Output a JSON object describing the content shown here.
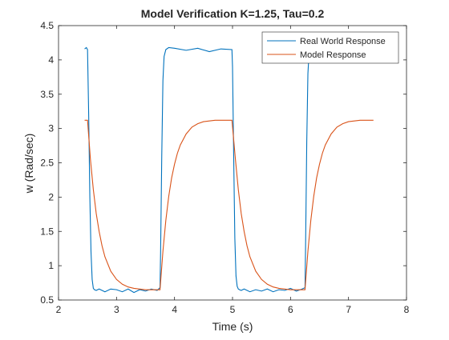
{
  "chart_data": {
    "type": "line",
    "title": "Model Verification K=1.25, Tau=0.2",
    "xlabel": "Time (s)",
    "ylabel": "w (Rad/sec)",
    "xlim": [
      2,
      8
    ],
    "ylim": [
      0.5,
      4.5
    ],
    "xticks": [
      "2",
      "3",
      "4",
      "5",
      "6",
      "7",
      "8"
    ],
    "yticks": [
      "0.5",
      "1",
      "1.5",
      "2",
      "2.5",
      "3",
      "3.5",
      "4",
      "4.5"
    ],
    "grid": false,
    "legend_position": "top-right",
    "series": [
      {
        "name": "Real World Response",
        "color": "#0072BD",
        "x": [
          2.45,
          2.48,
          2.5,
          2.52,
          2.54,
          2.56,
          2.58,
          2.6,
          2.62,
          2.65,
          2.7,
          2.8,
          2.9,
          3.0,
          3.1,
          3.2,
          3.3,
          3.4,
          3.5,
          3.6,
          3.7,
          3.75,
          3.76,
          3.78,
          3.8,
          3.82,
          3.85,
          3.9,
          4.0,
          4.2,
          4.4,
          4.6,
          4.8,
          4.99,
          5.0,
          5.02,
          5.04,
          5.06,
          5.08,
          5.1,
          5.12,
          5.15,
          5.2,
          5.3,
          5.4,
          5.5,
          5.6,
          5.7,
          5.8,
          5.9,
          6.0,
          6.1,
          6.2,
          6.25,
          6.26,
          6.28,
          6.3,
          6.32,
          6.35
        ],
        "y": [
          4.16,
          4.18,
          4.15,
          3.2,
          2.0,
          1.2,
          0.8,
          0.67,
          0.65,
          0.64,
          0.66,
          0.62,
          0.66,
          0.65,
          0.62,
          0.66,
          0.61,
          0.65,
          0.63,
          0.66,
          0.64,
          0.68,
          1.2,
          2.6,
          3.7,
          4.05,
          4.15,
          4.18,
          4.17,
          4.14,
          4.17,
          4.12,
          4.16,
          4.15,
          3.9,
          2.6,
          1.4,
          0.85,
          0.7,
          0.66,
          0.65,
          0.64,
          0.66,
          0.62,
          0.65,
          0.63,
          0.66,
          0.62,
          0.65,
          0.64,
          0.67,
          0.63,
          0.66,
          0.68,
          1.3,
          2.8,
          3.8,
          4.1,
          4.15
        ]
      },
      {
        "name": "Model Response",
        "color": "#D95319",
        "x": [
          2.45,
          2.5,
          2.55,
          2.6,
          2.65,
          2.7,
          2.75,
          2.8,
          2.9,
          3.0,
          3.1,
          3.2,
          3.3,
          3.4,
          3.5,
          3.6,
          3.7,
          3.75,
          3.8,
          3.85,
          3.9,
          3.95,
          4.0,
          4.05,
          4.1,
          4.2,
          4.3,
          4.4,
          4.5,
          4.6,
          4.7,
          4.8,
          4.9,
          4.99,
          5.05,
          5.1,
          5.15,
          5.2,
          5.25,
          5.3,
          5.4,
          5.5,
          5.6,
          5.7,
          5.8,
          5.9,
          6.0,
          6.1,
          6.2,
          6.25,
          6.3,
          6.35,
          6.4,
          6.45,
          6.5,
          6.55,
          6.6,
          6.7,
          6.8,
          6.9,
          7.0,
          7.1,
          7.2,
          7.3,
          7.43
        ],
        "y": [
          3.12,
          3.12,
          2.55,
          2.11,
          1.76,
          1.5,
          1.29,
          1.13,
          0.92,
          0.8,
          0.73,
          0.69,
          0.67,
          0.66,
          0.65,
          0.65,
          0.65,
          0.65,
          1.21,
          1.66,
          2.01,
          2.28,
          2.48,
          2.64,
          2.76,
          2.92,
          3.02,
          3.07,
          3.1,
          3.11,
          3.12,
          3.12,
          3.12,
          3.12,
          2.55,
          2.11,
          1.76,
          1.5,
          1.29,
          1.13,
          0.92,
          0.8,
          0.73,
          0.69,
          0.67,
          0.66,
          0.65,
          0.65,
          0.65,
          0.65,
          1.21,
          1.66,
          2.01,
          2.28,
          2.48,
          2.64,
          2.76,
          2.92,
          3.02,
          3.07,
          3.1,
          3.11,
          3.12,
          3.12,
          3.12
        ]
      }
    ]
  }
}
